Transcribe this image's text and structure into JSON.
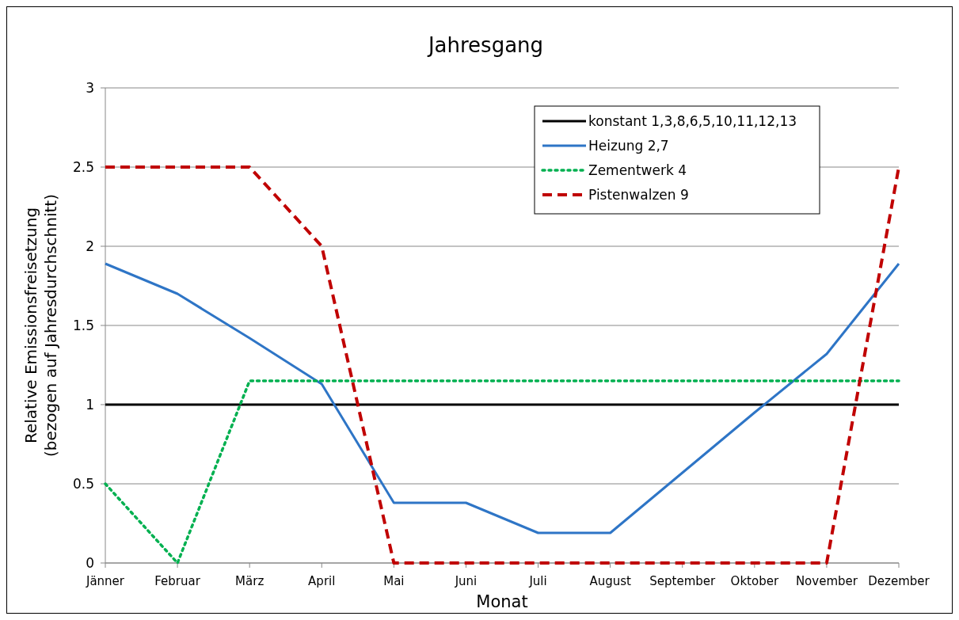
{
  "chart_data": {
    "type": "line",
    "title": "Jahresgang",
    "xlabel": "Monat",
    "ylabel": "Relative Emissionsfreisetzung\n(bezogen auf Jahresdurchschnitt)",
    "categories": [
      "Jänner",
      "Februar",
      "März",
      "April",
      "Mai",
      "Juni",
      "Juli",
      "August",
      "September",
      "Oktober",
      "November",
      "Dezember"
    ],
    "series": [
      {
        "name": "konstant 1,3,8,6,5,10,11,12,13",
        "color": "#000000",
        "line_style": "solid",
        "values": [
          1,
          1,
          1,
          1,
          1,
          1,
          1,
          1,
          1,
          1,
          1,
          1
        ]
      },
      {
        "name": "Heizung 2,7",
        "color": "#2e75c6",
        "line_style": "solid",
        "values": [
          1.89,
          1.7,
          1.42,
          1.13,
          0.38,
          0.38,
          0.19,
          0.19,
          0.57,
          0.95,
          1.32,
          1.89
        ]
      },
      {
        "name": "Zementwerk 4",
        "color": "#00b050",
        "line_style": "dotted",
        "values": [
          0.5,
          0,
          1.15,
          1.15,
          1.15,
          1.15,
          1.15,
          1.15,
          1.15,
          1.15,
          1.15,
          1.15
        ]
      },
      {
        "name": "Pistenwalzen 9",
        "color": "#c00000",
        "line_style": "dashed",
        "values": [
          2.5,
          2.5,
          2.5,
          2,
          0,
          0,
          0,
          0,
          0,
          0,
          0,
          2.5
        ]
      }
    ],
    "ylim": [
      0,
      3
    ],
    "yticks": [
      0,
      0.5,
      1,
      1.5,
      2,
      2.5,
      3
    ],
    "grid": "y",
    "legend": "top right",
    "marker": "none"
  }
}
